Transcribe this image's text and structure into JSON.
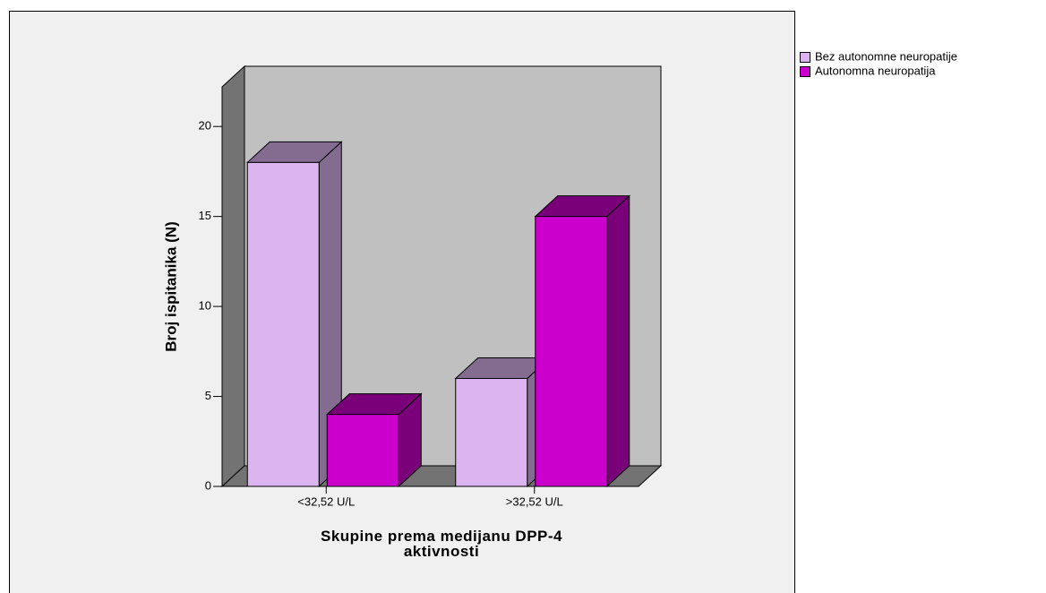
{
  "chart_data": {
    "type": "bar3d",
    "categories": [
      "<32,52 U/L",
      ">32,52 U/L"
    ],
    "series": [
      {
        "name": "Bez autonomne neuropatije",
        "color": "#dcb4f0",
        "values": [
          18,
          6
        ]
      },
      {
        "name": "Autonomna neuropatija",
        "color": "#cc00cc",
        "values": [
          4,
          15
        ]
      }
    ],
    "xlabel": "Skupine prema medijanu DPP-4 aktivnosti",
    "ylabel": "Broj ispitanika (N)",
    "ylim": [
      0,
      22.2
    ],
    "yticks": [
      0,
      5,
      10,
      15,
      20
    ]
  }
}
